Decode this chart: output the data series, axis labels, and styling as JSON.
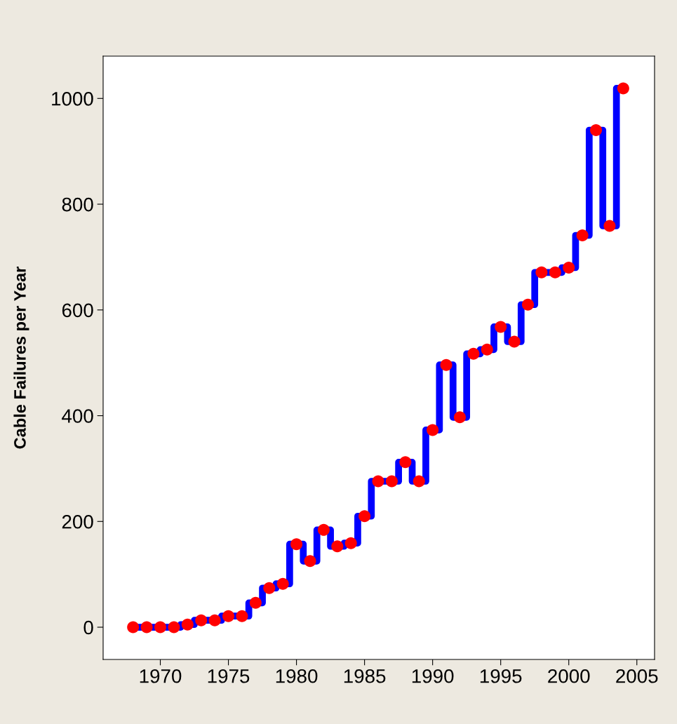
{
  "chart_data": {
    "type": "step",
    "ylabel": "Cable Failures per Year",
    "x": [
      1968,
      1969,
      1970,
      1971,
      1972,
      1973,
      1974,
      1975,
      1976,
      1977,
      1978,
      1979,
      1980,
      1981,
      1982,
      1983,
      1984,
      1985,
      1986,
      1987,
      1988,
      1989,
      1990,
      1991,
      1992,
      1993,
      1994,
      1995,
      1996,
      1997,
      1998,
      1999,
      2000,
      2001,
      2002,
      2003,
      2004
    ],
    "series": [
      {
        "color": "#0000ff",
        "values": [
          0,
          0,
          0,
          0,
          5,
          13,
          13,
          21,
          21,
          46,
          74,
          82,
          157,
          125,
          184,
          153,
          159,
          210,
          276,
          276,
          312,
          276,
          373,
          496,
          397,
          517,
          525,
          568,
          540,
          610,
          671,
          671,
          680,
          741,
          940,
          759,
          1019
        ]
      },
      {
        "type": "scatter",
        "color": "#ff0000",
        "values": [
          0,
          0,
          0,
          0,
          5,
          13,
          13,
          21,
          21,
          46,
          74,
          82,
          157,
          125,
          184,
          153,
          159,
          210,
          276,
          276,
          312,
          276,
          373,
          496,
          397,
          517,
          525,
          568,
          540,
          610,
          671,
          671,
          680,
          741,
          940,
          759,
          1019
        ]
      }
    ],
    "xlim": [
      1965.8,
      2006.3
    ],
    "xticks": [
      1970,
      1975,
      1980,
      1985,
      1990,
      1995,
      2000,
      2005
    ],
    "ylim": [
      -61,
      1080
    ],
    "yticks": [
      0,
      200,
      400,
      600,
      800,
      1000
    ],
    "grid": false
  }
}
